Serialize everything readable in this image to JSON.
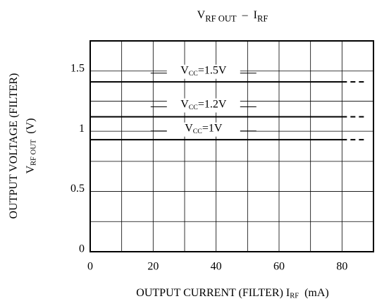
{
  "chart_data": {
    "type": "line",
    "title": [
      {
        "text": "V"
      },
      {
        "text": "RF OUT",
        "sub": true
      },
      {
        "text": "  –  I"
      },
      {
        "text": "RF",
        "sub": true
      }
    ],
    "ylabel": [
      [
        {
          "text": "OUTPUT VOLTAGE (FILTER)"
        }
      ],
      [
        {
          "text": "V"
        },
        {
          "text": "RF OUT",
          "sub": true
        },
        {
          "text": "  (V)"
        }
      ]
    ],
    "xlabel": [
      {
        "text": "OUTPUT CURRENT (FILTER) I"
      },
      {
        "text": "RF",
        "sub": true
      },
      {
        "text": "  (mA)"
      }
    ],
    "xlim": [
      0,
      90
    ],
    "ylim": [
      0,
      1.75
    ],
    "xticks": [
      0,
      20,
      40,
      60,
      80
    ],
    "yticks": [
      0,
      0.5,
      1,
      1.5
    ],
    "xgrid": [
      10,
      20,
      30,
      40,
      50,
      60,
      70,
      80
    ],
    "ygrid": [
      0.25,
      0.5,
      0.75,
      1,
      1.25,
      1.5
    ],
    "series": [
      {
        "label": [
          {
            "text": "V"
          },
          {
            "text": "CC",
            "sub": true
          },
          {
            "text": "=1.5V"
          }
        ],
        "color": "#000000",
        "x": [
          0,
          80
        ],
        "values": [
          1.41,
          1.41
        ],
        "x_dashed": [
          80,
          88
        ],
        "values_dashed": [
          1.41,
          1.41
        ],
        "label_at": [
          36,
          1.5
        ]
      },
      {
        "label": [
          {
            "text": "V"
          },
          {
            "text": "CC",
            "sub": true
          },
          {
            "text": "=1.2V"
          }
        ],
        "color": "#000000",
        "x": [
          0,
          80
        ],
        "values": [
          1.12,
          1.12
        ],
        "x_dashed": [
          80,
          88
        ],
        "values_dashed": [
          1.12,
          1.12
        ],
        "label_at": [
          36,
          1.22
        ]
      },
      {
        "label": [
          {
            "text": "V"
          },
          {
            "text": "CC",
            "sub": true
          },
          {
            "text": "=1V"
          }
        ],
        "color": "#000000",
        "x": [
          0,
          80
        ],
        "values": [
          0.93,
          0.93
        ],
        "x_dashed": [
          80,
          88
        ],
        "values_dashed": [
          0.93,
          0.93
        ],
        "label_at": [
          36,
          1.02
        ]
      }
    ]
  }
}
